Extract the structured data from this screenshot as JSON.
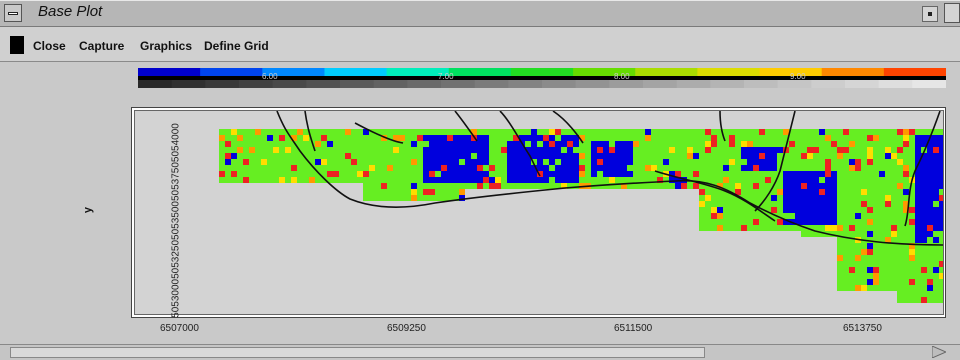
{
  "window": {
    "title": "Base Plot"
  },
  "menu": {
    "items": [
      {
        "label": "Close"
      },
      {
        "label": "Capture"
      },
      {
        "label": "Graphics"
      },
      {
        "label": "Define Grid"
      }
    ]
  },
  "colorbar": {
    "tick_labels": [
      "6.00",
      "7.00",
      "8.00",
      "9.00"
    ],
    "colors": [
      "#0000cc",
      "#0044ee",
      "#0088ff",
      "#00ccff",
      "#00eebb",
      "#00e060",
      "#22dd22",
      "#66dd00",
      "#aadd00",
      "#dddd00",
      "#ffcc00",
      "#ff8800",
      "#ff4400"
    ]
  },
  "plot": {
    "y_label": "y",
    "y_ticks": [
      "5053000",
      "5053250",
      "5053500",
      "5053750",
      "5054000"
    ],
    "x_ticks": [
      "6507000",
      "6509250",
      "6511500",
      "6513750"
    ],
    "colors": {
      "background": "#d3d3d3",
      "green": "#66ee22",
      "blue": "#0000dd",
      "red": "#ee2222",
      "orange": "#ff9900",
      "yellow": "#ffdd00",
      "line": "#111111"
    }
  }
}
